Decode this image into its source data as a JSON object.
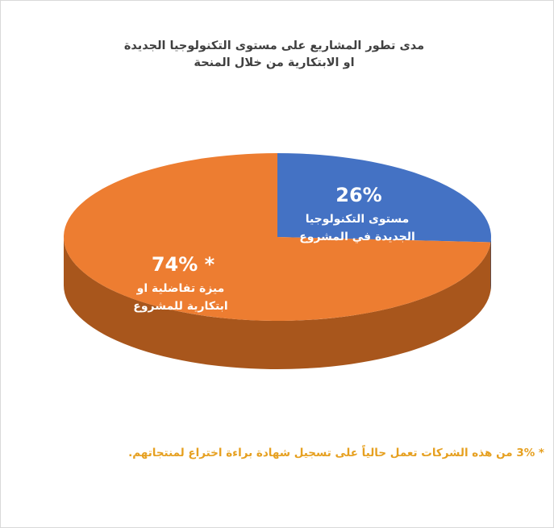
{
  "chart_data": {
    "type": "pie",
    "title_line1": "مدى تطور المشاريع على مستوى التكنولوجيا الجديدة",
    "title_line2": "او الابتكارية من خلال المنحة",
    "slices": [
      {
        "value": 26,
        "pct_label": "26%",
        "text_line1": "مستوى التكنولوجيا",
        "text_line2": "الجديدة  في المشروع",
        "color": "#4472c4",
        "side_color": "#1f3864"
      },
      {
        "value": 74,
        "pct_label": "* 74%",
        "text_line1": "ميزة تفاضلية او",
        "text_line2": "ابتكارية للمشروع",
        "color": "#ed7d31",
        "side_color": "#a8561c"
      }
    ],
    "three_d": true
  },
  "footnote": "* 3% من هذه الشركات تعمل حالياً على تسجيل شهادة براءة اختراع لمنتجاتهم."
}
